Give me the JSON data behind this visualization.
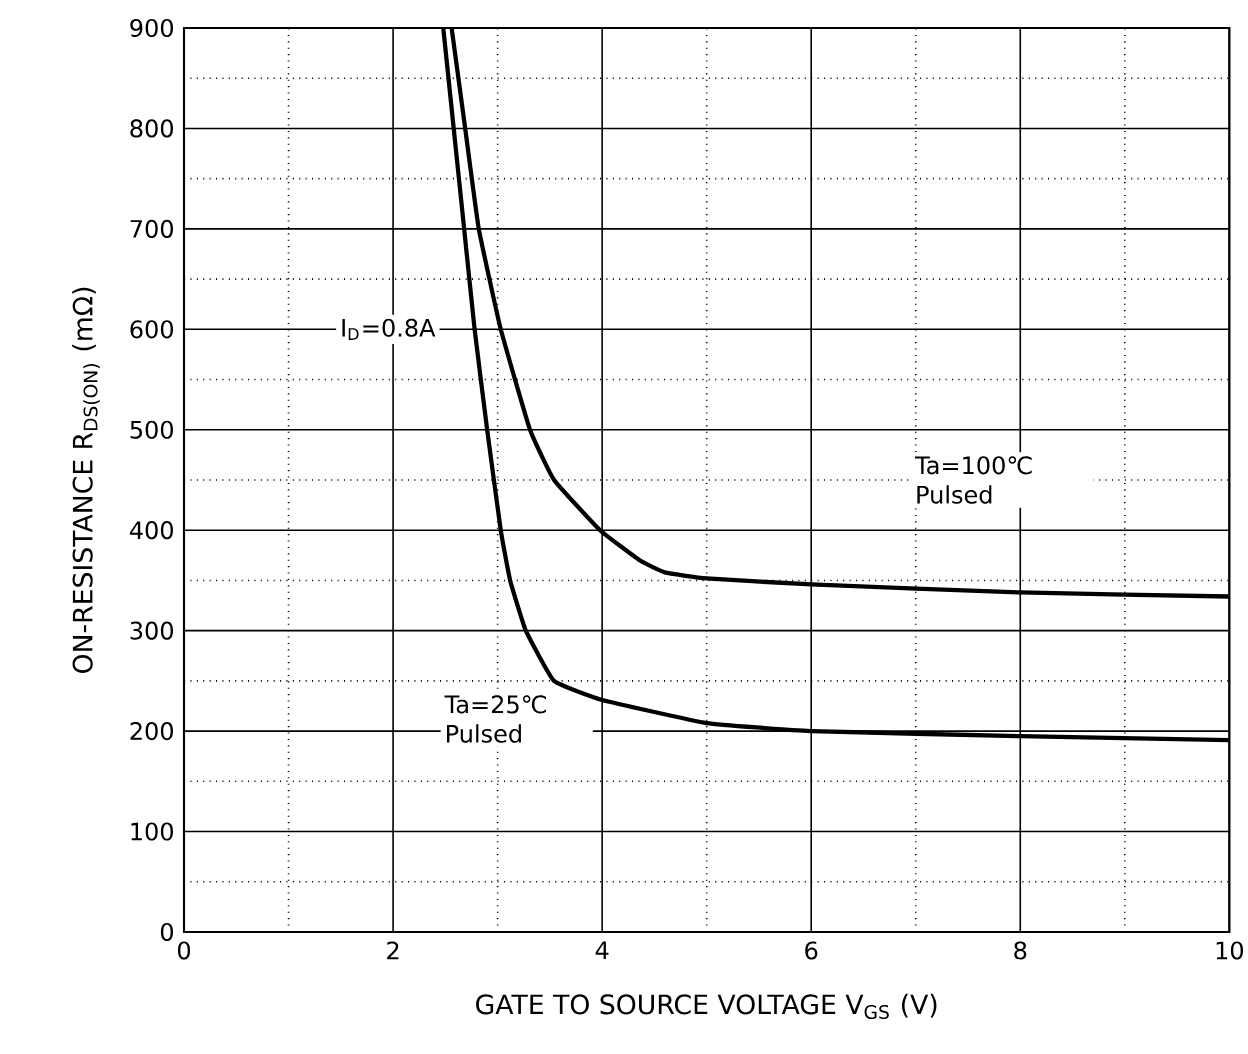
{
  "chart_data": {
    "type": "line",
    "xlabel": "GATE TO SOURCE VOLTAGE    V$_{GS}$    (V)",
    "ylabel": "ON-RESISTANCE    R$_{DS(ON)}$    (mΩ)",
    "xlim": [
      0,
      10
    ],
    "ylim": [
      0,
      900
    ],
    "xticks": [
      0,
      2,
      4,
      6,
      8,
      10
    ],
    "yticks": [
      0,
      100,
      200,
      300,
      400,
      500,
      600,
      700,
      800,
      900
    ],
    "grid": true,
    "series": [
      {
        "color": "#000000",
        "x": [
          2.48,
          2.58,
          2.68,
          2.78,
          2.9,
          3.03,
          3.12,
          3.27,
          3.54,
          4,
          5,
          6,
          8,
          10
        ],
        "values": [
          900,
          800,
          700,
          600,
          500,
          400,
          350,
          300,
          250,
          231,
          208,
          200,
          195,
          191
        ]
      },
      {
        "color": "#000000",
        "x": [
          2.56,
          2.69,
          2.82,
          3.03,
          3.31,
          3.54,
          3.98,
          4.36,
          4.6,
          5,
          6,
          8,
          10
        ],
        "values": [
          900,
          800,
          700,
          600,
          500,
          450,
          400,
          370,
          358,
          352,
          346,
          338,
          334
        ]
      }
    ],
    "annotations": [
      "I$_{D}$=0.8A",
      "Ta=25℃ Pulsed",
      "Ta=100℃ Pulsed"
    ]
  }
}
